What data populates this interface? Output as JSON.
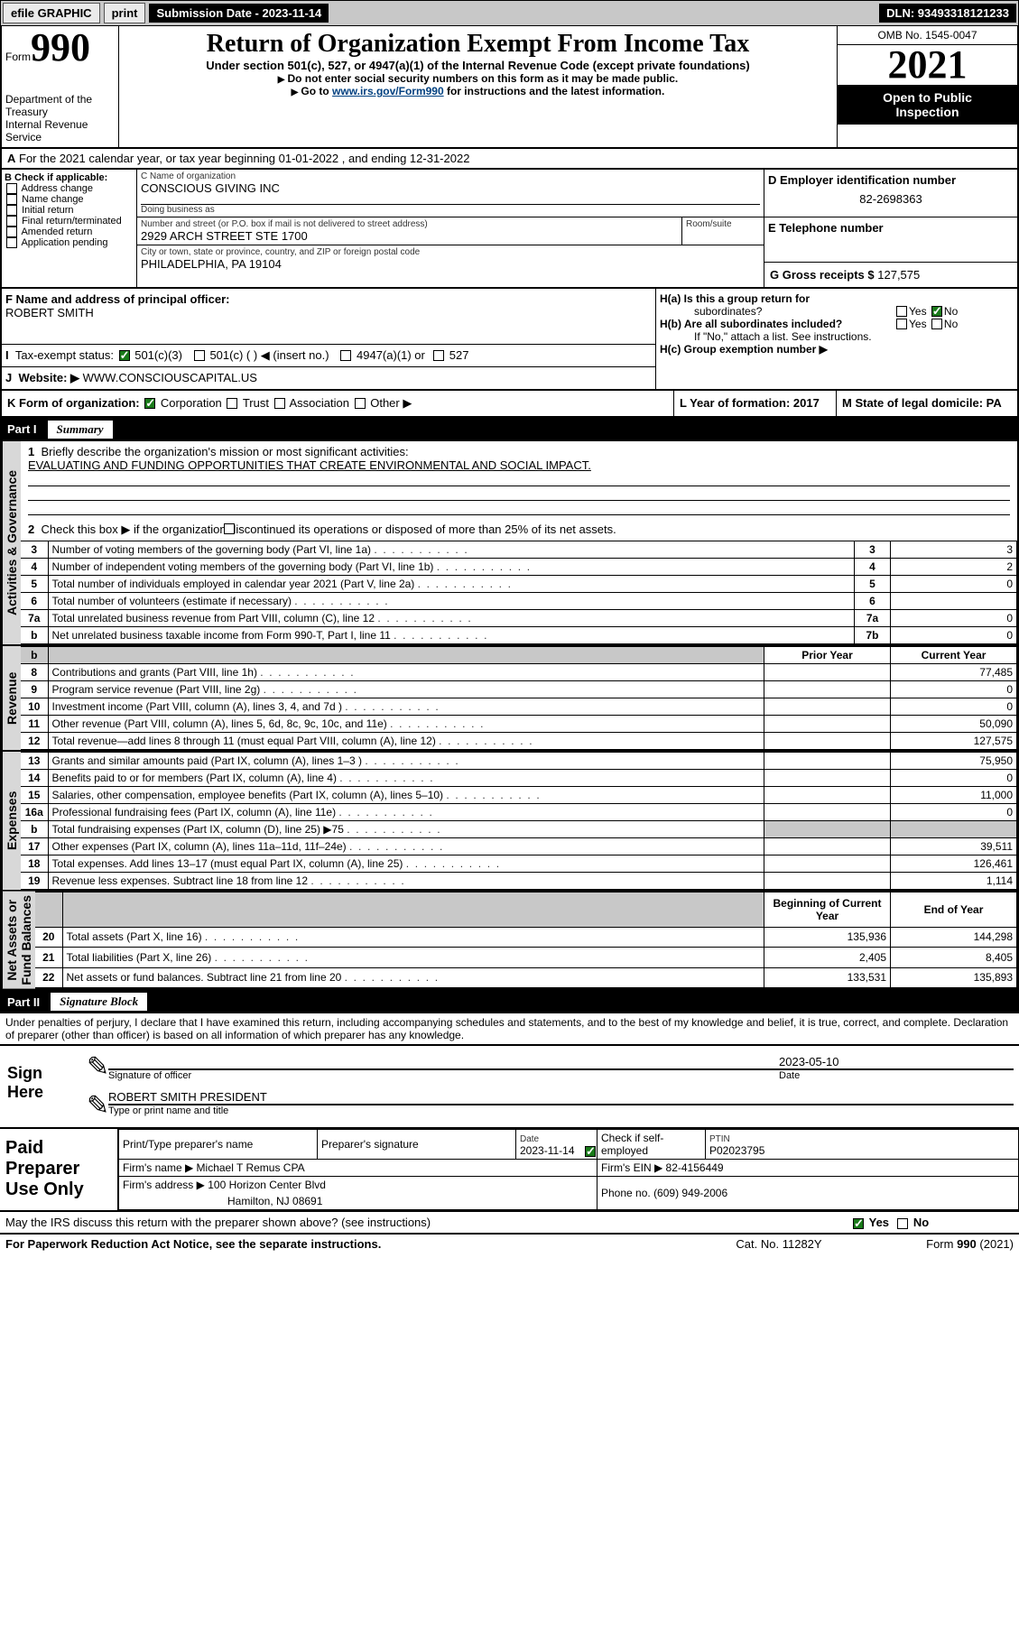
{
  "topbar": {
    "efile": "efile GRAPHIC",
    "print": "print",
    "submission_label": "Submission Date - 2023-11-14",
    "dln": "DLN: 93493318121233"
  },
  "header": {
    "form_word": "Form",
    "form_no": "990",
    "dept": "Department of the Treasury",
    "irs": "Internal Revenue Service",
    "title": "Return of Organization Exempt From Income Tax",
    "sub": "Under section 501(c), 527, or 4947(a)(1) of the Internal Revenue Code (except private foundations)",
    "warn": "Do not enter social security numbers on this form as it may be made public.",
    "goto_pre": "Go to ",
    "goto_link": "www.irs.gov/Form990",
    "goto_post": " for instructions and the latest information.",
    "omb": "OMB No. 1545-0047",
    "year": "2021",
    "inspect1": "Open to Public",
    "inspect2": "Inspection"
  },
  "A": {
    "label": "A",
    "text": "For the 2021 calendar year, or tax year beginning 01-01-2022   , and ending 12-31-2022"
  },
  "B": {
    "label": "B Check if applicable:",
    "opts": [
      "Address change",
      "Name change",
      "Initial return",
      "Final return/terminated",
      "Amended return",
      "Application pending"
    ]
  },
  "C": {
    "name_lbl": "C Name of organization",
    "name": "CONSCIOUS GIVING INC",
    "dba_lbl": "Doing business as",
    "dba": "",
    "street_lbl": "Number and street (or P.O. box if mail is not delivered to street address)",
    "room_lbl": "Room/suite",
    "street": "2929 ARCH STREET STE 1700",
    "city_lbl": "City or town, state or province, country, and ZIP or foreign postal code",
    "city": "PHILADELPHIA, PA  19104"
  },
  "D": {
    "lbl": "D Employer identification number",
    "val": "82-2698363"
  },
  "E": {
    "lbl": "E Telephone number",
    "val": ""
  },
  "G": {
    "lbl": "G Gross receipts $",
    "val": "127,575"
  },
  "F": {
    "lbl": "F  Name and address of principal officer:",
    "val": "ROBERT SMITH"
  },
  "H": {
    "a": "H(a)  Is this a group return for",
    "a2": "subordinates?",
    "b": "H(b)  Are all subordinates included?",
    "bnote": "If \"No,\" attach a list. See instructions.",
    "c": "H(c)  Group exemption number ▶",
    "yes": "Yes",
    "no": "No"
  },
  "I": {
    "lbl": "Tax-exempt status:",
    "o1": "501(c)(3)",
    "o2": "501(c) (  ) ◀ (insert no.)",
    "o3": "4947(a)(1) or",
    "o4": "527"
  },
  "J": {
    "lbl": "Website: ▶",
    "val": "WWW.CONSCIOUSCAPITAL.US"
  },
  "K": {
    "lbl": "K Form of organization:",
    "o1": "Corporation",
    "o2": "Trust",
    "o3": "Association",
    "o4": "Other ▶"
  },
  "L": {
    "lbl": "L Year of formation: 2017"
  },
  "M": {
    "lbl": "M State of legal domicile: PA"
  },
  "part1": {
    "label": "Part I",
    "title": "Summary"
  },
  "summary": {
    "l1": "Briefly describe the organization's mission or most significant activities:",
    "mission": "EVALUATING AND FUNDING OPPORTUNITIES THAT CREATE ENVIRONMENTAL AND SOCIAL IMPACT.",
    "l2": "Check this box ▶        if the organization discontinued its operations or disposed of more than 25% of its net assets.",
    "rows_a": [
      {
        "n": "3",
        "t": "Number of voting members of the governing body (Part VI, line 1a)",
        "box": "3",
        "v": "3"
      },
      {
        "n": "4",
        "t": "Number of independent voting members of the governing body (Part VI, line 1b)",
        "box": "4",
        "v": "2"
      },
      {
        "n": "5",
        "t": "Total number of individuals employed in calendar year 2021 (Part V, line 2a)",
        "box": "5",
        "v": "0"
      },
      {
        "n": "6",
        "t": "Total number of volunteers (estimate if necessary)",
        "box": "6",
        "v": ""
      },
      {
        "n": "7a",
        "t": "Total unrelated business revenue from Part VIII, column (C), line 12",
        "box": "7a",
        "v": "0"
      },
      {
        "n": "b",
        "t": "Net unrelated business taxable income from Form 990-T, Part I, line 11",
        "box": "7b",
        "v": "0"
      }
    ],
    "col_prior": "Prior Year",
    "col_current": "Current Year",
    "revenue": [
      {
        "n": "8",
        "t": "Contributions and grants (Part VIII, line 1h)",
        "p": "",
        "c": "77,485"
      },
      {
        "n": "9",
        "t": "Program service revenue (Part VIII, line 2g)",
        "p": "",
        "c": "0"
      },
      {
        "n": "10",
        "t": "Investment income (Part VIII, column (A), lines 3, 4, and 7d )",
        "p": "",
        "c": "0"
      },
      {
        "n": "11",
        "t": "Other revenue (Part VIII, column (A), lines 5, 6d, 8c, 9c, 10c, and 11e)",
        "p": "",
        "c": "50,090"
      },
      {
        "n": "12",
        "t": "Total revenue—add lines 8 through 11 (must equal Part VIII, column (A), line 12)",
        "p": "",
        "c": "127,575"
      }
    ],
    "expenses": [
      {
        "n": "13",
        "t": "Grants and similar amounts paid (Part IX, column (A), lines 1–3 )",
        "p": "",
        "c": "75,950"
      },
      {
        "n": "14",
        "t": "Benefits paid to or for members (Part IX, column (A), line 4)",
        "p": "",
        "c": "0"
      },
      {
        "n": "15",
        "t": "Salaries, other compensation, employee benefits (Part IX, column (A), lines 5–10)",
        "p": "",
        "c": "11,000"
      },
      {
        "n": "16a",
        "t": "Professional fundraising fees (Part IX, column (A), line 11e)",
        "p": "",
        "c": "0"
      },
      {
        "n": "b",
        "t": "Total fundraising expenses (Part IX, column (D), line 25) ▶75",
        "p": "grey",
        "c": "grey"
      },
      {
        "n": "17",
        "t": "Other expenses (Part IX, column (A), lines 11a–11d, 11f–24e)",
        "p": "",
        "c": "39,511"
      },
      {
        "n": "18",
        "t": "Total expenses. Add lines 13–17 (must equal Part IX, column (A), line 25)",
        "p": "",
        "c": "126,461"
      },
      {
        "n": "19",
        "t": "Revenue less expenses. Subtract line 18 from line 12",
        "p": "",
        "c": "1,114"
      }
    ],
    "col_begin": "Beginning of Current Year",
    "col_end": "End of Year",
    "netassets": [
      {
        "n": "20",
        "t": "Total assets (Part X, line 16)",
        "p": "135,936",
        "c": "144,298"
      },
      {
        "n": "21",
        "t": "Total liabilities (Part X, line 26)",
        "p": "2,405",
        "c": "8,405"
      },
      {
        "n": "22",
        "t": "Net assets or fund balances. Subtract line 21 from line 20",
        "p": "133,531",
        "c": "135,893"
      }
    ],
    "vert_ag": "Activities & Governance",
    "vert_rev": "Revenue",
    "vert_exp": "Expenses",
    "vert_net": "Net Assets or\nFund Balances"
  },
  "part2": {
    "label": "Part II",
    "title": "Signature Block",
    "penalties": "Under penalties of perjury, I declare that I have examined this return, including accompanying schedules and statements, and to the best of my knowledge and belief, it is true, correct, and complete. Declaration of preparer (other than officer) is based on all information of which preparer has any knowledge."
  },
  "sign": {
    "here": "Sign\nHere",
    "sig_lbl": "Signature of officer",
    "date_lbl": "Date",
    "date": "2023-05-10",
    "name": "ROBERT SMITH  PRESIDENT",
    "name_lbl": "Type or print name and title"
  },
  "paid": {
    "title": "Paid\nPreparer\nUse Only",
    "h1": "Print/Type preparer's name",
    "h2": "Preparer's signature",
    "h3": "Date",
    "h4": "Check          if self-employed",
    "h5": "PTIN",
    "date": "2023-11-14",
    "ptin": "P02023795",
    "firm_lbl": "Firm's name    ▶",
    "firm": "Michael T Remus CPA",
    "ein_lbl": "Firm's EIN ▶",
    "ein": "82-4156449",
    "addr_lbl": "Firm's address ▶",
    "addr1": "100 Horizon Center Blvd",
    "addr2": "Hamilton, NJ  08691",
    "phone_lbl": "Phone no.",
    "phone": "(609) 949-2006"
  },
  "footer": {
    "discuss": "May the IRS discuss this return with the preparer shown above? (see instructions)",
    "yes": "Yes",
    "no": "No",
    "pra": "For Paperwork Reduction Act Notice, see the separate instructions.",
    "cat": "Cat. No. 11282Y",
    "form": "Form 990 (2021)"
  }
}
